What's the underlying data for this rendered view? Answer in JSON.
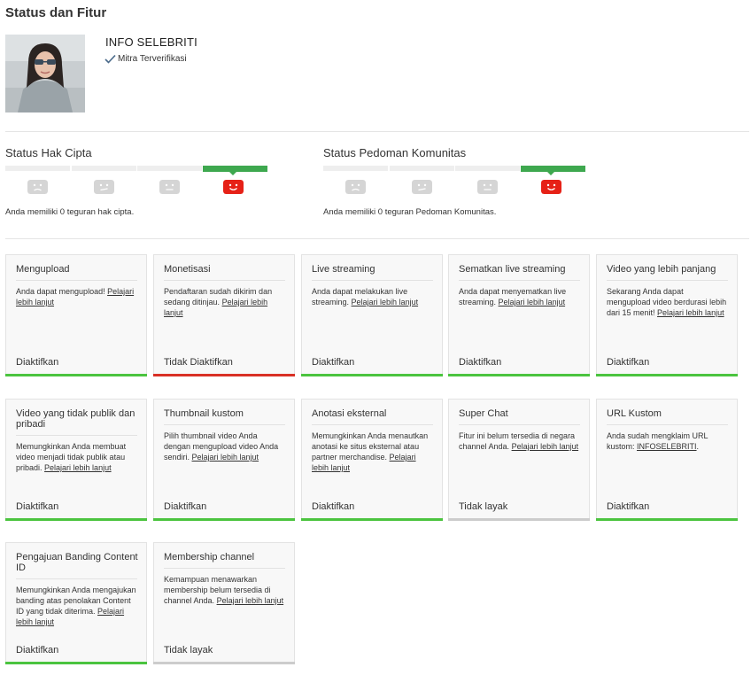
{
  "page": {
    "title": "Status dan Fitur"
  },
  "channel": {
    "name": "INFO SELEBRITI",
    "verified_label": "Mitra Terverifikasi"
  },
  "copyright": {
    "title": "Status Hak Cipta",
    "description": "Anda memiliki 0 teguran hak cipta.",
    "level": 4,
    "levels_total": 4
  },
  "community": {
    "title": "Status Pedoman Komunitas",
    "description": "Anda memiliki 0 teguran Pedoman Komunitas.",
    "level": 4,
    "levels_total": 4
  },
  "colors": {
    "enabled": "#4bc43f",
    "disabled": "#d93025",
    "ineligible": "#cccccc",
    "meter_active": "#3ea84f",
    "face_active": "#e62117",
    "face_inactive": "#d5d5d5"
  },
  "features": [
    {
      "title": "Mengupload",
      "desc": "Anda dapat mengupload! ",
      "link": "Pelajari lebih lanjut",
      "suffix": "",
      "status": "Diaktifkan",
      "state": "enabled"
    },
    {
      "title": "Monetisasi",
      "desc": "Pendaftaran sudah dikirim dan sedang ditinjau. ",
      "link": "Pelajari lebih lanjut",
      "suffix": "",
      "status": "Tidak Diaktifkan",
      "state": "disabled"
    },
    {
      "title": "Live streaming",
      "desc": "Anda dapat melakukan live streaming. ",
      "link": "Pelajari lebih lanjut",
      "suffix": "",
      "status": "Diaktifkan",
      "state": "enabled"
    },
    {
      "title": "Sematkan live streaming",
      "desc": "Anda dapat menyematkan live streaming. ",
      "link": "Pelajari lebih lanjut",
      "suffix": "",
      "status": "Diaktifkan",
      "state": "enabled"
    },
    {
      "title": "Video yang lebih panjang",
      "desc": "Sekarang Anda dapat mengupload video berdurasi lebih dari 15 menit! ",
      "link": "Pelajari lebih lanjut",
      "suffix": "",
      "status": "Diaktifkan",
      "state": "enabled"
    },
    {
      "title": "Video yang tidak publik dan pribadi",
      "desc": "Memungkinkan Anda membuat video menjadi tidak publik atau pribadi. ",
      "link": "Pelajari lebih lanjut",
      "suffix": "",
      "status": "Diaktifkan",
      "state": "enabled"
    },
    {
      "title": "Thumbnail kustom",
      "desc": "Pilih thumbnail video Anda dengan mengupload video Anda sendiri. ",
      "link": "Pelajari lebih lanjut",
      "suffix": "",
      "status": "Diaktifkan",
      "state": "enabled"
    },
    {
      "title": "Anotasi eksternal",
      "desc": "Memungkinkan Anda menautkan anotasi ke situs eksternal atau partner merchandise. ",
      "link": "Pelajari lebih lanjut",
      "suffix": "",
      "status": "Diaktifkan",
      "state": "enabled"
    },
    {
      "title": "Super Chat",
      "desc": "Fitur ini belum tersedia di negara channel Anda. ",
      "link": "Pelajari lebih lanjut",
      "suffix": "",
      "status": "Tidak layak",
      "state": "ineligible"
    },
    {
      "title": "URL Kustom",
      "desc": "Anda sudah mengklaim URL kustom: ",
      "link": "INFOSELEBRITI",
      "suffix": ".",
      "status": "Diaktifkan",
      "state": "enabled"
    },
    {
      "title": "Pengajuan Banding Content ID",
      "desc": "Memungkinkan Anda mengajukan banding atas penolakan Content ID yang tidak diterima. ",
      "link": "Pelajari lebih lanjut",
      "suffix": "",
      "status": "Diaktifkan",
      "state": "enabled"
    },
    {
      "title": "Membership channel",
      "desc": "Kemampuan menawarkan membership belum tersedia di channel Anda. ",
      "link": "Pelajari lebih lanjut",
      "suffix": "",
      "status": "Tidak layak",
      "state": "ineligible"
    }
  ]
}
